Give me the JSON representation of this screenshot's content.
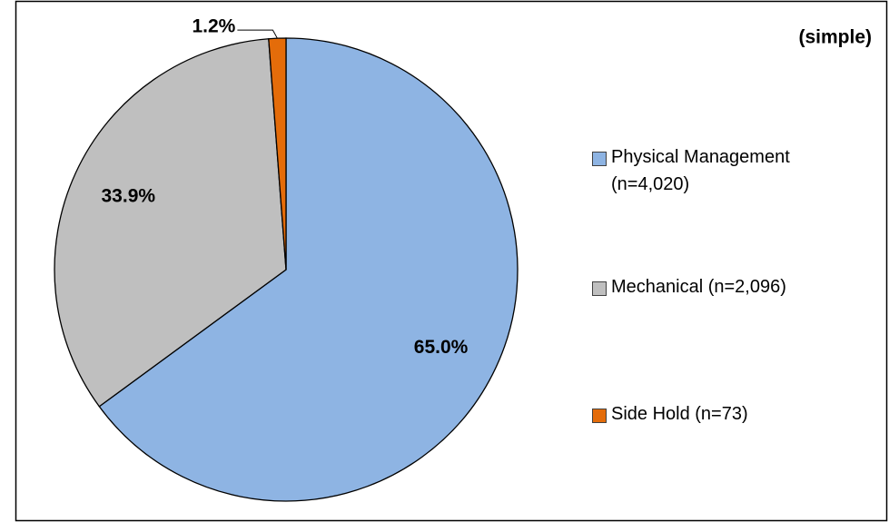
{
  "chart_data": {
    "type": "pie",
    "annotation": "(simple)",
    "categories": [
      "Physical Management (n=4,020)",
      "Mechanical (n=2,096)",
      "Side Hold (n=73)"
    ],
    "values": [
      65.0,
      33.9,
      1.2
    ],
    "value_labels": [
      "65.0%",
      "33.9%",
      "1.2%"
    ],
    "colors": [
      "#8eb4e3",
      "#bfbfbf",
      "#e46c0a"
    ],
    "legend": "right"
  }
}
